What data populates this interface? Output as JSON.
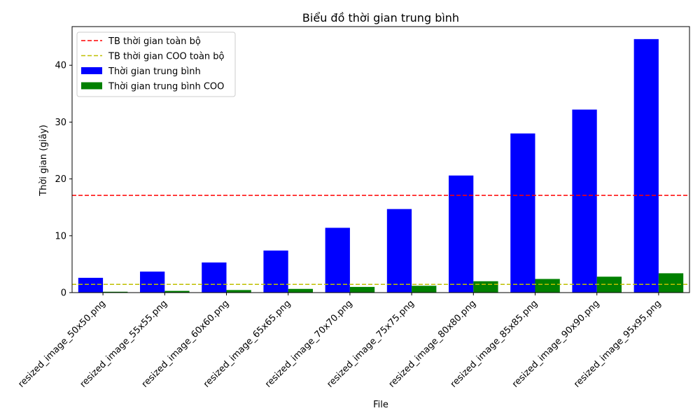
{
  "chart_data": {
    "type": "bar",
    "title": "Biểu đồ thời gian trung bình",
    "xlabel": "File",
    "ylabel": "Thời gian (giây)",
    "categories": [
      "resized_image_50x50.png",
      "resized_image_55x55.png",
      "resized_image_60x60.png",
      "resized_image_65x65.png",
      "resized_image_70x70.png",
      "resized_image_75x75.png",
      "resized_image_80x80.png",
      "resized_image_85x85.png",
      "resized_image_90x90.png",
      "resized_image_95x95.png"
    ],
    "series": [
      {
        "name": "Thời gian trung bình",
        "color": "#0000ff",
        "values": [
          2.6,
          3.7,
          5.3,
          7.4,
          11.4,
          14.7,
          20.6,
          28.0,
          32.2,
          44.6
        ]
      },
      {
        "name": "Thời gian trung bình COO",
        "color": "#008000",
        "values": [
          0.15,
          0.3,
          0.45,
          0.65,
          1.0,
          1.2,
          2.0,
          2.4,
          2.8,
          3.4
        ]
      }
    ],
    "reference_lines": [
      {
        "name": "TB thời gian toàn bộ",
        "value": 17.1,
        "color": "#ff0000",
        "style": "dashed"
      },
      {
        "name": "TB thời gian COO toàn bộ",
        "value": 1.45,
        "color": "#bfbf00",
        "style": "dashed"
      }
    ],
    "ylim": [
      0,
      46.8
    ],
    "yticks": [
      0,
      10,
      20,
      30,
      40
    ],
    "grid": false,
    "legend_position": "top-left"
  }
}
